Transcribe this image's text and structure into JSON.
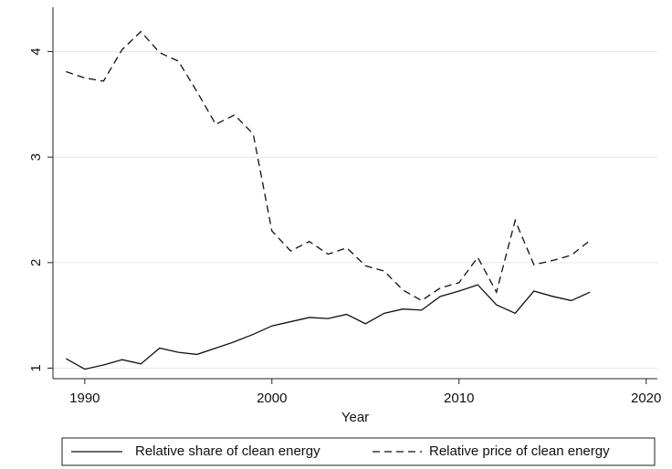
{
  "chart_data": {
    "type": "line",
    "x_label": "Year",
    "x": [
      1989,
      1990,
      1991,
      1992,
      1993,
      1994,
      1995,
      1996,
      1997,
      1998,
      1999,
      2000,
      2001,
      2002,
      2003,
      2004,
      2005,
      2006,
      2007,
      2008,
      2009,
      2010,
      2011,
      2012,
      2013,
      2014,
      2015,
      2016,
      2017
    ],
    "series": [
      {
        "name": "Relative share of clean energy",
        "color": "#111111",
        "dash": false,
        "values": [
          1.09,
          0.99,
          1.03,
          1.08,
          1.04,
          1.19,
          1.15,
          1.13,
          1.19,
          1.25,
          1.32,
          1.4,
          1.44,
          1.48,
          1.47,
          1.51,
          1.42,
          1.52,
          1.56,
          1.55,
          1.68,
          1.73,
          1.79,
          1.6,
          1.52,
          1.73,
          1.68,
          1.64,
          1.72
        ]
      },
      {
        "name": "Relative price of clean energy",
        "color": "#111111",
        "dash": true,
        "values": [
          3.81,
          3.75,
          3.72,
          4.02,
          4.19,
          3.99,
          3.91,
          3.62,
          3.31,
          3.4,
          3.22,
          2.3,
          2.11,
          2.2,
          2.08,
          2.14,
          1.97,
          1.92,
          1.74,
          1.64,
          1.76,
          1.81,
          2.05,
          1.72,
          2.4,
          1.98,
          2.02,
          2.07,
          2.21
        ]
      }
    ],
    "xlim": [
      1988.3,
      2020.6
    ],
    "xticks": [
      1990,
      2000,
      2010,
      2020
    ],
    "ylim": [
      0.9,
      4.42
    ],
    "yticks": [
      1,
      2,
      3,
      4
    ],
    "grid": true,
    "legend": "bottom"
  }
}
